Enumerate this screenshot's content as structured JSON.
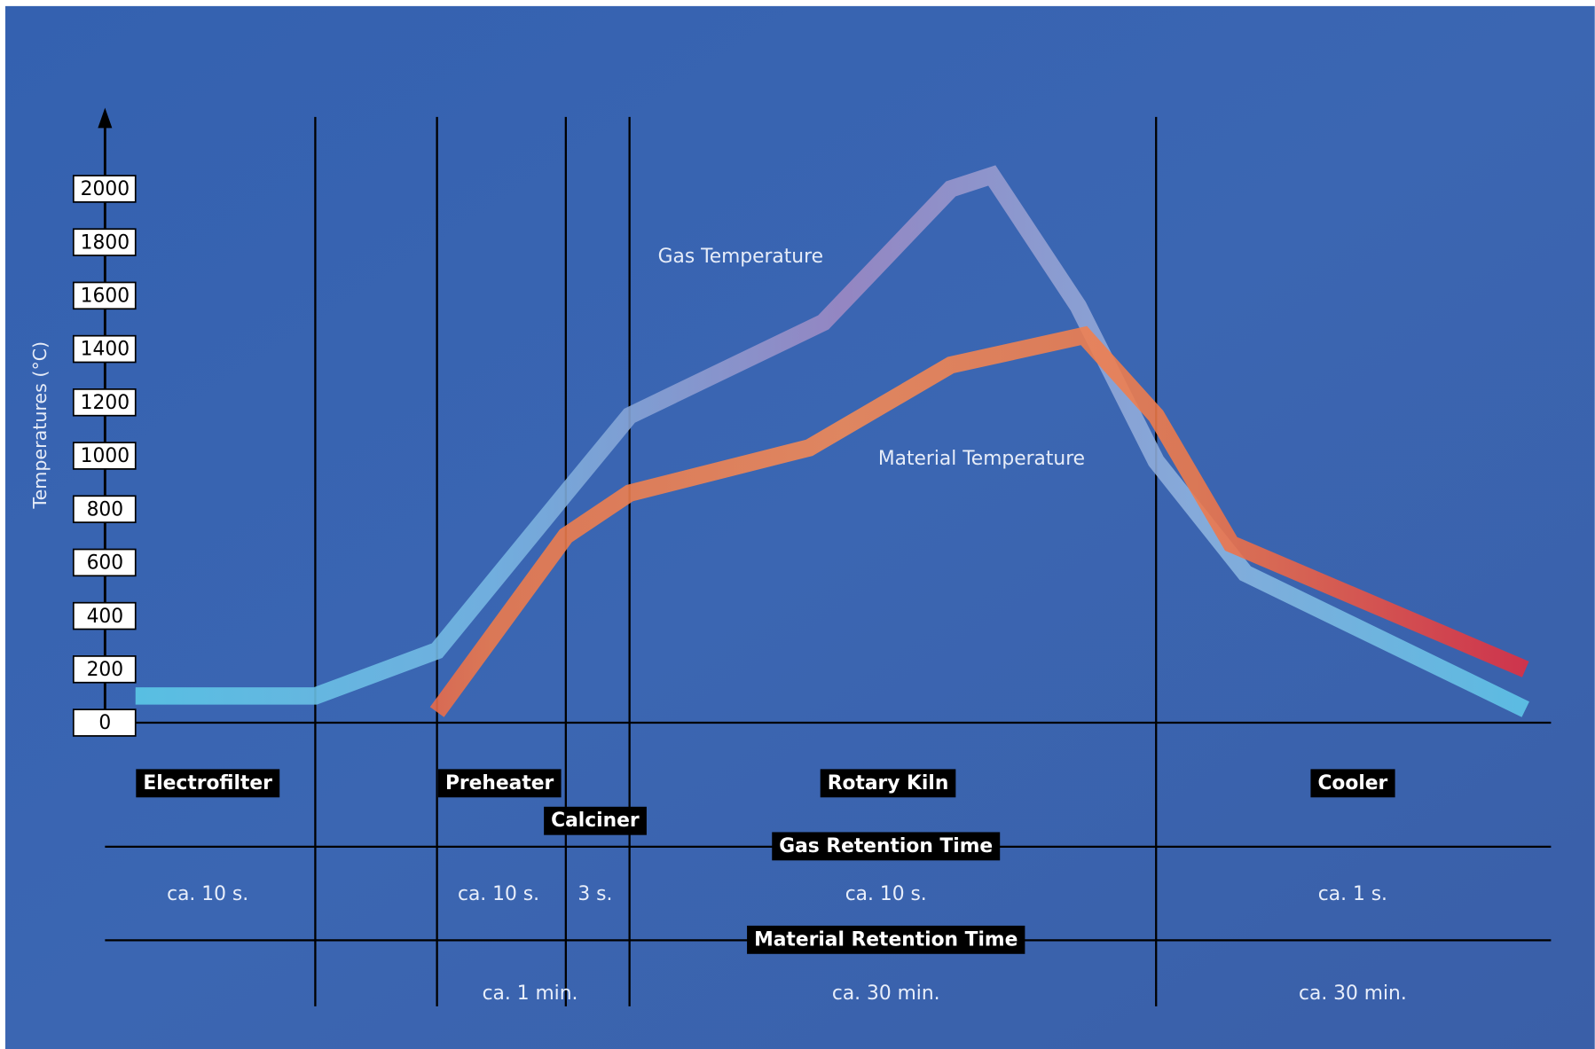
{
  "chart_data": {
    "type": "line",
    "y_label": "Temperatures (°C)",
    "ylim": [
      0,
      2300
    ],
    "xlim": [
      0,
      100
    ],
    "yticks": [
      0,
      200,
      400,
      600,
      800,
      1000,
      1200,
      1400,
      1600,
      1800,
      2000
    ],
    "dividers": [
      12.7,
      21.3,
      30.4,
      34.9,
      72.1
    ],
    "series": [
      {
        "name": "Gas Temperature",
        "gradient": [
          "#5ccbe9",
          "#78b8e4",
          "#a08ac4",
          "#8fb4e0",
          "#5cc9ea"
        ],
        "x": [
          0,
          12.7,
          21.3,
          30.4,
          34.9,
          48.6,
          57.6,
          60.5,
          66.6,
          72.1,
          78.4,
          98.2
        ],
        "values": [
          100,
          100,
          270,
          860,
          1150,
          1500,
          2000,
          2050,
          1560,
          980,
          560,
          50
        ]
      },
      {
        "name": "Material Temperature",
        "gradient": [
          "#d8183a",
          "#f07a4a",
          "#f58a55",
          "#f07a4a",
          "#e0283f"
        ],
        "x": [
          21.3,
          30.4,
          34.9,
          47.6,
          57.6,
          67.0,
          72.1,
          77.4,
          98.2
        ],
        "values": [
          40,
          700,
          860,
          1030,
          1340,
          1450,
          1150,
          670,
          200
        ]
      }
    ],
    "zones": [
      "Electrofilter",
      "Preheater",
      "Calciner",
      "Rotary Kiln",
      "Cooler"
    ],
    "gas_retention": {
      "title": "Gas Retention Time",
      "times": [
        "ca. 10 s.",
        "ca. 10 s.",
        "3 s.",
        "ca. 10 s.",
        "ca. 1 s."
      ]
    },
    "material_retention": {
      "title": "Material Retention Time",
      "times": [
        "ca. 1 min.",
        "ca. 30 min.",
        "ca. 30 min."
      ]
    }
  }
}
